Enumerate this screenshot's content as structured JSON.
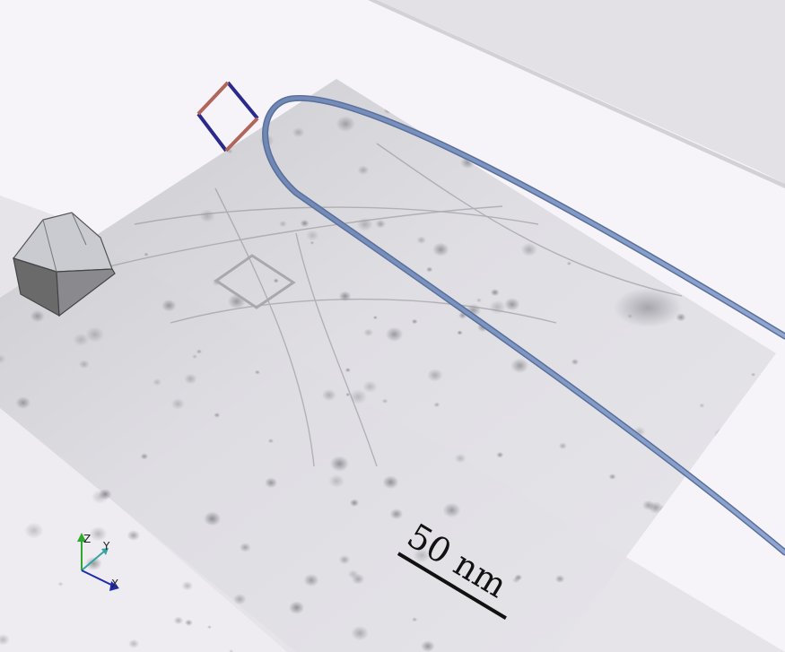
{
  "scale_bar": {
    "label": "50 nm"
  },
  "axes": {
    "x_label": "X",
    "y_label": "Y",
    "z_label": "Z"
  },
  "colors": {
    "background": "#f6f4f8",
    "floor_band": "#e7e4ea",
    "tem_image": "#d6d6da",
    "wire": "#7f98c4",
    "frame_red": "#b0665a",
    "frame_blue": "#2a2a8c",
    "cube_light": "#c9cbd1",
    "cube_dark": "#6a6a6a"
  },
  "icons": [
    "wire-loop",
    "unit-cell-frame",
    "crystal-block",
    "axis-triad",
    "scale-bar-line"
  ]
}
